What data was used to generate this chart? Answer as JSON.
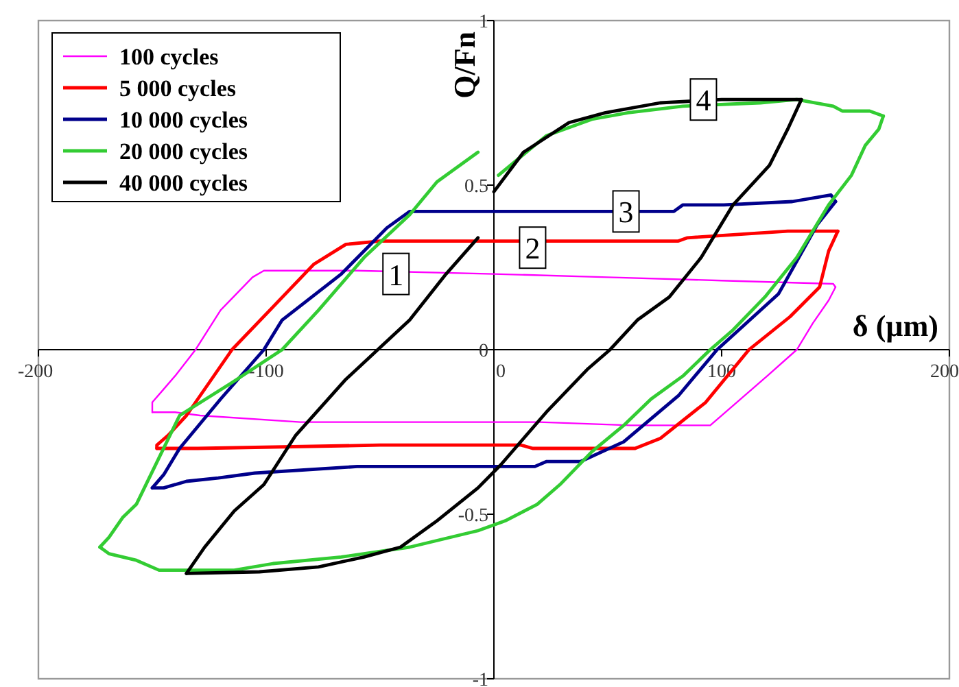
{
  "chart_data": {
    "type": "line",
    "xlabel": "δ (µm)",
    "ylabel": "Q/Fn",
    "xlim": [
      -200,
      200
    ],
    "ylim": [
      -1,
      1
    ],
    "xticks": [
      -200,
      -100,
      0,
      100,
      200
    ],
    "yticks": [
      -1,
      -0.5,
      0,
      0.5,
      1
    ],
    "legend": "top left",
    "line_style": "solid",
    "annotations": [
      {
        "text": "1",
        "x": -43,
        "y": 0.23
      },
      {
        "text": "2",
        "x": 17,
        "y": 0.31
      },
      {
        "text": "3",
        "x": 58,
        "y": 0.42
      },
      {
        "text": "4",
        "x": 92,
        "y": 0.76
      }
    ],
    "series": [
      {
        "name": "100 cycles",
        "color": "#ff00ff",
        "x": [
          -150,
          -150,
          -145,
          -140,
          -131,
          -120,
          -106,
          -101,
          -60,
          0,
          50,
          100,
          149,
          150
        ],
        "values": [
          -0.19,
          -0.16,
          -0.12,
          -0.08,
          0,
          0.12,
          0.22,
          0.24,
          0.24,
          0.23,
          0.22,
          0.21,
          0.2,
          0.19
        ]
      },
      {
        "color": "#ff00ff",
        "x": [
          -150,
          -140,
          -129,
          -85,
          -40,
          20,
          60,
          95,
          105,
          120,
          133,
          140,
          147,
          150
        ],
        "values": [
          -0.19,
          -0.19,
          -0.2,
          -0.22,
          -0.22,
          -0.22,
          -0.23,
          -0.23,
          -0.17,
          -0.08,
          0,
          0.08,
          0.15,
          0.19
        ]
      },
      {
        "name": "5 000 cycles",
        "color": "#ff0000",
        "x": [
          -148,
          -148,
          -143,
          -135,
          -125,
          -115,
          -97,
          -79,
          -65,
          -50,
          0,
          50,
          81,
          85,
          129,
          151
        ],
        "values": [
          -0.3,
          -0.29,
          -0.26,
          -0.2,
          -0.1,
          0,
          0.13,
          0.26,
          0.32,
          0.33,
          0.33,
          0.33,
          0.33,
          0.34,
          0.36,
          0.36
        ]
      },
      {
        "color": "#ff0000",
        "x": [
          -148,
          -130,
          -50,
          12,
          17,
          62,
          73,
          93,
          112,
          130,
          143,
          147,
          151
        ],
        "values": [
          -0.3,
          -0.3,
          -0.29,
          -0.29,
          -0.3,
          -0.3,
          -0.27,
          -0.16,
          0,
          0.1,
          0.19,
          0.3,
          0.36
        ]
      },
      {
        "name": "10 000 cycles",
        "color": "#00008b",
        "x": [
          -150,
          -145,
          -138,
          -120,
          -101,
          -93,
          -67,
          -47,
          -37,
          0,
          79,
          83,
          101,
          131,
          148,
          150
        ],
        "values": [
          -0.42,
          -0.38,
          -0.3,
          -0.15,
          0,
          0.09,
          0.23,
          0.37,
          0.42,
          0.42,
          0.42,
          0.44,
          0.44,
          0.45,
          0.47,
          0.45
        ]
      },
      {
        "color": "#00008b",
        "x": [
          -150,
          -145,
          -135,
          -121,
          -105,
          -60,
          18,
          23,
          38,
          57,
          81,
          98,
          125,
          142,
          150
        ],
        "values": [
          -0.42,
          -0.42,
          -0.4,
          -0.39,
          -0.375,
          -0.355,
          -0.355,
          -0.34,
          -0.34,
          -0.28,
          -0.14,
          0,
          0.17,
          0.38,
          0.45
        ]
      },
      {
        "name": "20 000 cycles",
        "color": "#33cc33",
        "x": [
          -173,
          -169,
          -163,
          -157,
          -138,
          -115,
          -93,
          -77,
          -57,
          -37,
          -25,
          -7
        ],
        "values": [
          -0.6,
          -0.57,
          -0.51,
          -0.47,
          -0.2,
          -0.1,
          0,
          0.12,
          0.28,
          0.41,
          0.51,
          0.6
        ]
      },
      {
        "color": "#33cc33",
        "x": [
          2,
          23,
          43,
          59,
          83,
          117,
          133,
          149,
          153,
          165,
          171
        ],
        "values": [
          0.53,
          0.65,
          0.7,
          0.72,
          0.74,
          0.75,
          0.76,
          0.74,
          0.725,
          0.725,
          0.71
        ]
      },
      {
        "color": "#33cc33",
        "x": [
          -173,
          -169,
          -157,
          -147,
          -114,
          -97,
          -67,
          -37,
          -7,
          5,
          19,
          29,
          43,
          57,
          69,
          83,
          95,
          105,
          119,
          133,
          147,
          157,
          163,
          169,
          171
        ],
        "values": [
          -0.6,
          -0.62,
          -0.64,
          -0.67,
          -0.67,
          -0.65,
          -0.63,
          -0.6,
          -0.55,
          -0.52,
          -0.47,
          -0.41,
          -0.31,
          -0.23,
          -0.15,
          -0.08,
          0,
          0.06,
          0.16,
          0.28,
          0.44,
          0.53,
          0.62,
          0.67,
          0.71
        ]
      },
      {
        "name": "40 000 cycles",
        "color": "#000000",
        "x": [
          -135,
          -127,
          -114,
          -101,
          -87,
          -65,
          -51,
          -37,
          -21,
          -7
        ],
        "values": [
          -0.68,
          -0.6,
          -0.49,
          -0.41,
          -0.26,
          -0.09,
          0,
          0.09,
          0.23,
          0.34
        ]
      },
      {
        "color": "#000000",
        "x": [
          0,
          13,
          33,
          49,
          73,
          100,
          135
        ],
        "values": [
          0.48,
          0.6,
          0.69,
          0.72,
          0.75,
          0.76,
          0.76
        ]
      },
      {
        "color": "#000000",
        "x": [
          -135,
          -103,
          -77,
          -57,
          -41,
          -25,
          -7,
          3,
          23,
          41,
          51,
          63,
          77,
          91,
          105,
          121,
          129,
          135
        ],
        "values": [
          -0.68,
          -0.675,
          -0.66,
          -0.63,
          -0.6,
          -0.52,
          -0.42,
          -0.35,
          -0.19,
          -0.06,
          0,
          0.09,
          0.16,
          0.28,
          0.44,
          0.56,
          0.67,
          0.76
        ]
      }
    ]
  }
}
